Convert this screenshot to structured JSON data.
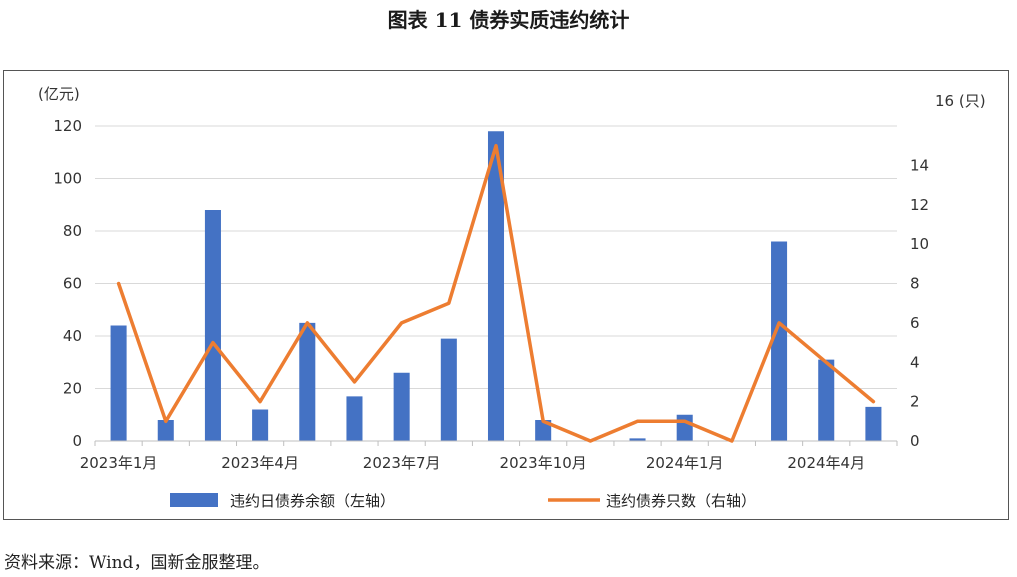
{
  "figure_title": "图表 11  债券实质违约统计",
  "source_note": "资料来源：Wind，国新金服整理。",
  "chart_data": {
    "type": "bar+line",
    "categories": [
      "2023-01",
      "2023-02",
      "2023-03",
      "2023-04",
      "2023-05",
      "2023-06",
      "2023-07",
      "2023-08",
      "2023-09",
      "2023-10",
      "2023-11",
      "2023-12",
      "2024-01",
      "2024-02",
      "2024-03",
      "2024-04",
      "2024-05"
    ],
    "x_tick_labels": [
      "2023年1月",
      "2023年4月",
      "2023年7月",
      "2023年10月",
      "2024年1月",
      "2024年4月"
    ],
    "x_tick_indices": [
      0,
      3,
      6,
      9,
      12,
      15
    ],
    "left_axis": {
      "unit_label": "(亿元)",
      "ylim": [
        0,
        120
      ],
      "ticks": [
        0,
        20,
        40,
        60,
        80,
        100,
        120
      ]
    },
    "right_axis": {
      "unit_label": "(只)",
      "ylim": [
        0,
        16
      ],
      "ticks": [
        0,
        2,
        4,
        6,
        8,
        10,
        12,
        14,
        16
      ]
    },
    "series": [
      {
        "name": "违约日债券余额（左轴）",
        "type": "bar",
        "axis": "left",
        "color": "#4472C4",
        "values": [
          44,
          8,
          88,
          12,
          45,
          17,
          26,
          39,
          118,
          8,
          0,
          1,
          10,
          0,
          76,
          31,
          13
        ]
      },
      {
        "name": "违约债券只数（右轴）",
        "type": "line",
        "axis": "right",
        "color": "#ED7D31",
        "values": [
          8,
          1,
          5,
          2,
          6,
          3,
          6,
          7,
          15,
          1,
          0,
          1,
          1,
          0,
          6,
          4,
          2
        ]
      }
    ],
    "grid": true,
    "legend_position": "bottom"
  }
}
